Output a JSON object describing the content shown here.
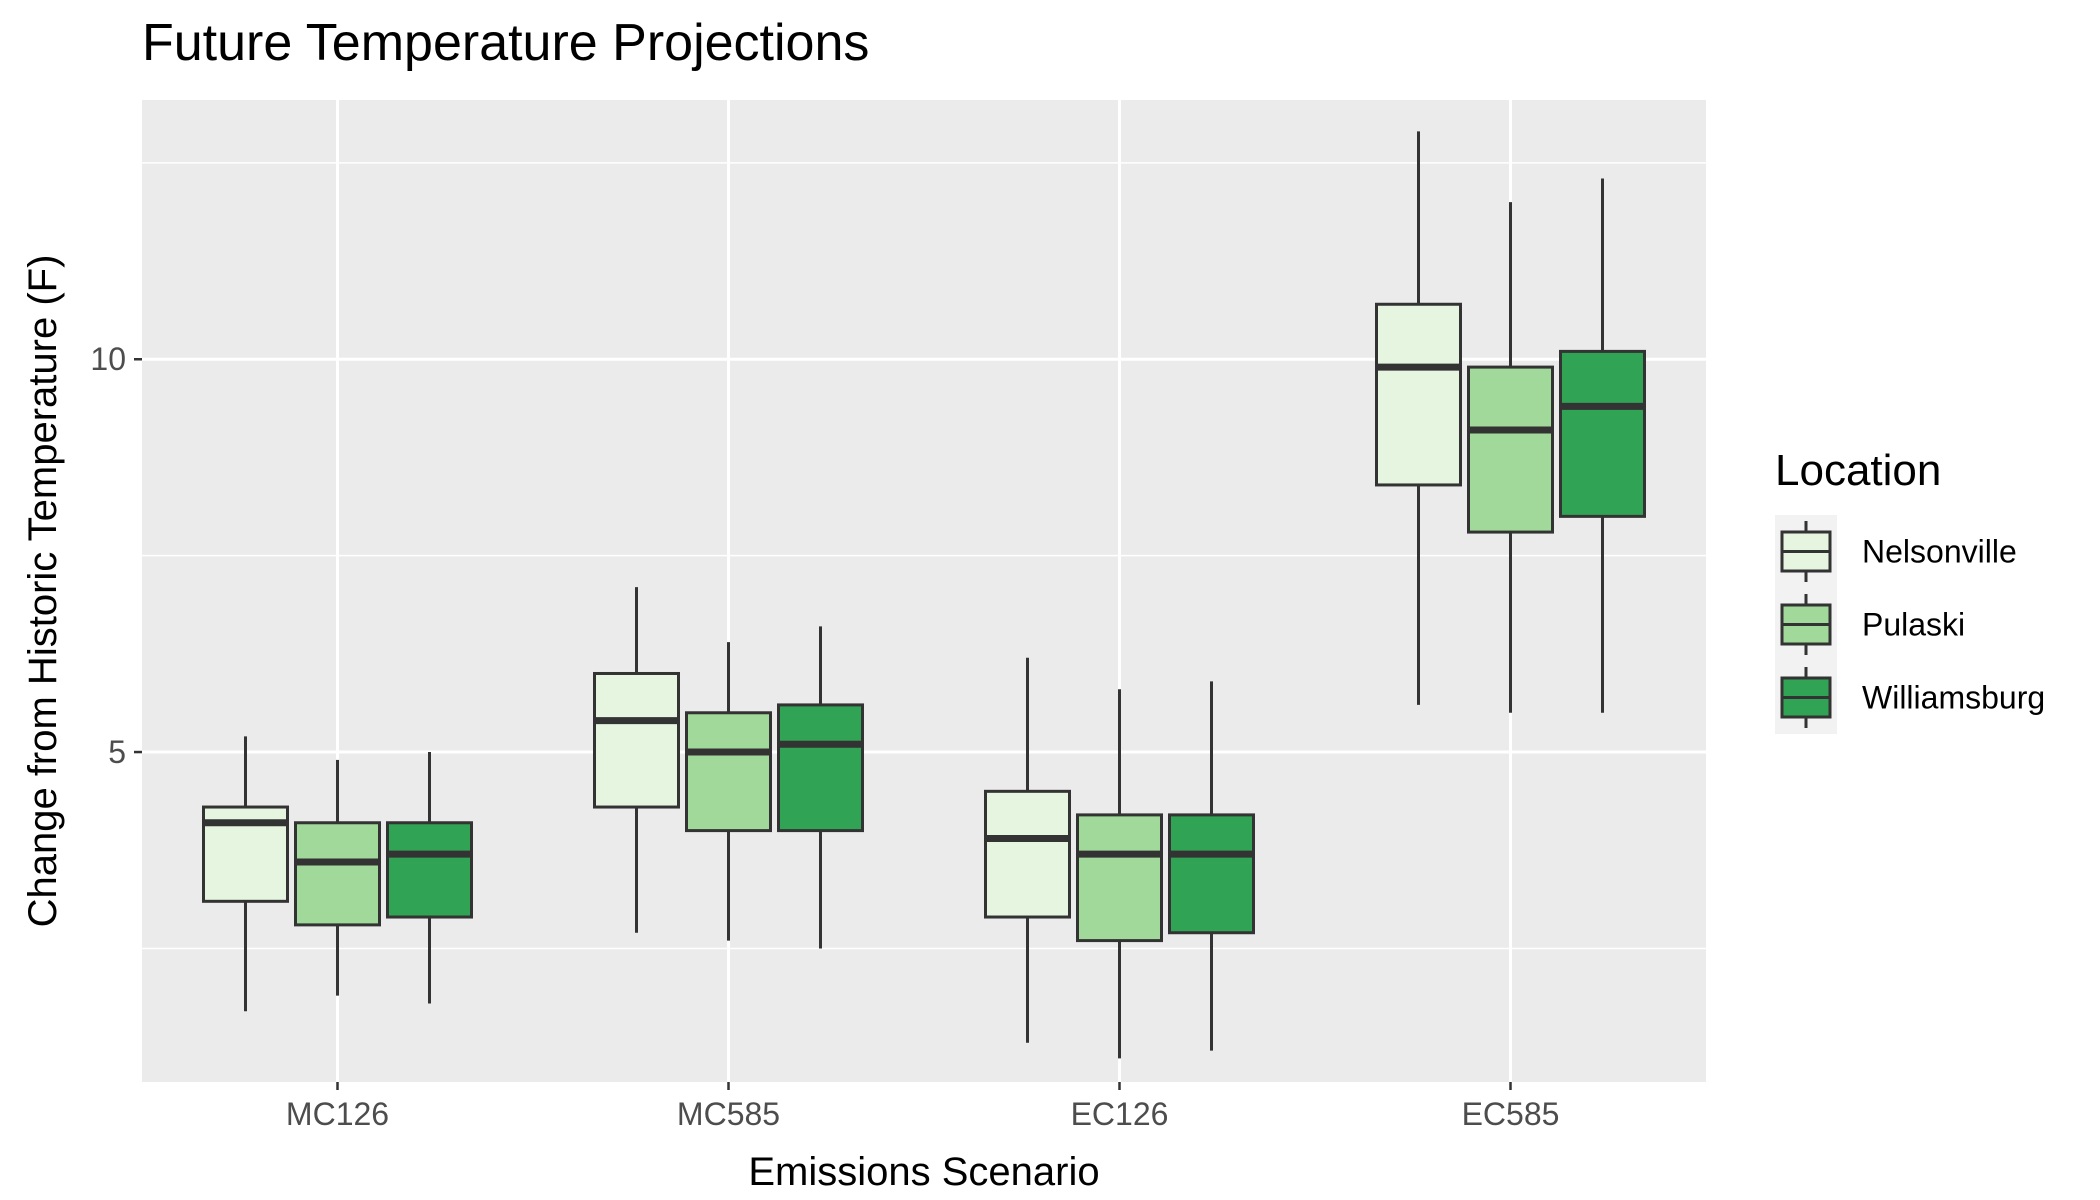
{
  "chart_data": {
    "type": "box",
    "title": "Future Temperature Projections",
    "xlabel": "Emissions Scenario",
    "ylabel": "Change from Historic Temperature (F)",
    "categories": [
      "MC126",
      "MC585",
      "EC126",
      "EC585"
    ],
    "ylim": [
      0.8,
      13.3
    ],
    "y_ticks": [
      5,
      10
    ],
    "y_tick_labels": [
      "5",
      "10"
    ],
    "grid": true,
    "legend": {
      "title": "Location",
      "position": "right"
    },
    "series": [
      {
        "name": "Nelsonville",
        "color": "#e5f5e0",
        "boxes": [
          {
            "min": 1.7,
            "q1": 3.1,
            "median": 4.1,
            "q3": 4.3,
            "max": 5.2
          },
          {
            "min": 2.7,
            "q1": 4.3,
            "median": 5.4,
            "q3": 6.0,
            "max": 7.1
          },
          {
            "min": 1.3,
            "q1": 2.9,
            "median": 3.9,
            "q3": 4.5,
            "max": 6.2
          },
          {
            "min": 5.6,
            "q1": 8.4,
            "median": 9.9,
            "q3": 10.7,
            "max": 12.9
          }
        ]
      },
      {
        "name": "Pulaski",
        "color": "#a1d99b",
        "boxes": [
          {
            "min": 1.9,
            "q1": 2.8,
            "median": 3.6,
            "q3": 4.1,
            "max": 4.9
          },
          {
            "min": 2.6,
            "q1": 4.0,
            "median": 5.0,
            "q3": 5.5,
            "max": 6.4
          },
          {
            "min": 1.1,
            "q1": 2.6,
            "median": 3.7,
            "q3": 4.2,
            "max": 5.8
          },
          {
            "min": 5.5,
            "q1": 7.8,
            "median": 9.1,
            "q3": 9.9,
            "max": 12.0
          }
        ]
      },
      {
        "name": "Williamsburg",
        "color": "#31a354",
        "boxes": [
          {
            "min": 1.8,
            "q1": 2.9,
            "median": 3.7,
            "q3": 4.1,
            "max": 5.0
          },
          {
            "min": 2.5,
            "q1": 4.0,
            "median": 5.1,
            "q3": 5.6,
            "max": 6.6
          },
          {
            "min": 1.2,
            "q1": 2.7,
            "median": 3.7,
            "q3": 4.2,
            "max": 5.9
          },
          {
            "min": 5.5,
            "q1": 8.0,
            "median": 9.4,
            "q3": 10.1,
            "max": 12.3
          }
        ]
      }
    ]
  }
}
